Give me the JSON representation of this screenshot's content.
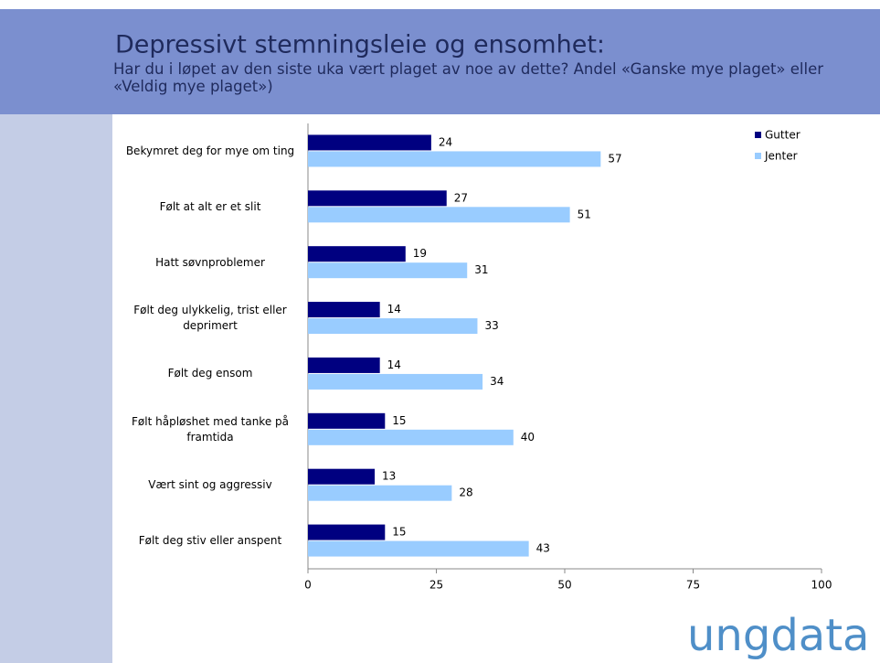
{
  "chart_data": {
    "type": "bar",
    "orientation": "horizontal",
    "title": "Depressivt stemningsleie og ensomhet:",
    "subtitle": "Har du i løpet av den siste uka vært plaget av noe av dette? Andel «Ganske mye plaget» eller «Veldig mye plaget»)",
    "categories": [
      "Bekymret deg for mye om ting",
      "Følt at alt er et slit",
      "Hatt søvnproblemer",
      "Følt deg ulykkelig, trist eller deprimert",
      "Følt deg ensom",
      "Følt håpløshet med tanke på framtida",
      "Vært sint og aggressiv",
      "Følt deg stiv eller anspent"
    ],
    "series": [
      {
        "name": "Gutter",
        "color": "#000080",
        "values": [
          24,
          27,
          19,
          14,
          14,
          15,
          13,
          15
        ]
      },
      {
        "name": "Jenter",
        "color": "#99ccff",
        "values": [
          57,
          51,
          31,
          33,
          34,
          40,
          28,
          43
        ]
      }
    ],
    "xlim": [
      0,
      100
    ],
    "xticks": [
      0,
      25,
      50,
      75,
      100
    ],
    "grid": false,
    "legend": "top-right",
    "logo": "ungdata"
  }
}
